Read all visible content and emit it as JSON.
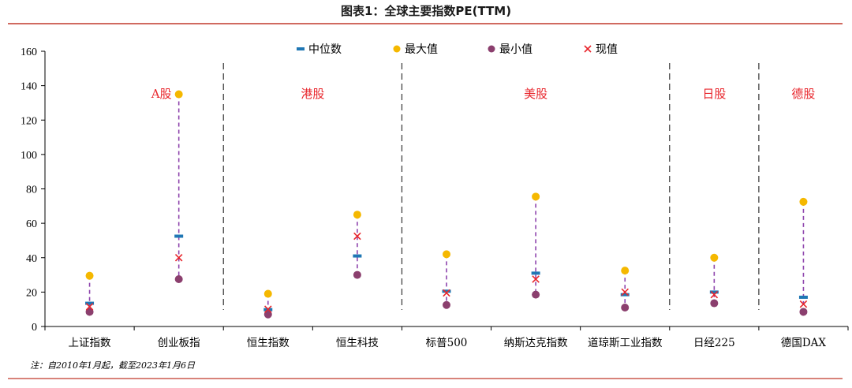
{
  "page": {
    "title": "图表1：全球主要指数PE(TTM)",
    "note": "注：自2010年1月起，截至2023年1月6日"
  },
  "chart_data": {
    "type": "scatter",
    "title": "图表1：全球主要指数PE(TTM)",
    "xlabel": "",
    "ylabel": "",
    "ylim": [
      0,
      160
    ],
    "yticks": [
      0,
      20,
      40,
      60,
      80,
      100,
      120,
      140,
      160
    ],
    "categories": [
      "上证指数",
      "创业板指",
      "恒生指数",
      "恒生科技",
      "标普500",
      "纳斯达克指数",
      "道琼斯工业指数",
      "日经225",
      "德国DAX"
    ],
    "series": [
      {
        "name": "中位数",
        "marker": "dash",
        "color": "#1f77b4",
        "values": [
          13.5,
          52.5,
          9.8,
          41.0,
          20.5,
          31.0,
          18.5,
          20.0,
          17.0
        ]
      },
      {
        "name": "最大值",
        "marker": "circle",
        "color": "#f5b800",
        "values": [
          29.5,
          135,
          19.0,
          65.0,
          42.0,
          75.5,
          32.5,
          40.0,
          72.5
        ]
      },
      {
        "name": "最小值",
        "marker": "circle",
        "color": "#8b3f6e",
        "values": [
          8.5,
          27.5,
          7.0,
          30.0,
          12.5,
          18.5,
          11.0,
          13.5,
          8.5
        ]
      },
      {
        "name": "现值",
        "marker": "x",
        "color": "#e8262c",
        "values": [
          11.5,
          40.0,
          10.0,
          52.5,
          19.5,
          27.5,
          20.0,
          18.5,
          13.0
        ]
      }
    ],
    "groups": [
      {
        "label": "A股",
        "from": 0,
        "to": 1
      },
      {
        "label": "港股",
        "from": 2,
        "to": 3
      },
      {
        "label": "美股",
        "from": 4,
        "to": 6
      },
      {
        "label": "日股",
        "from": 7,
        "to": 7
      },
      {
        "label": "德股",
        "from": 8,
        "to": 8
      }
    ],
    "range_line_color": "#8e44ad",
    "legend_position": "top-center",
    "grid": false
  }
}
